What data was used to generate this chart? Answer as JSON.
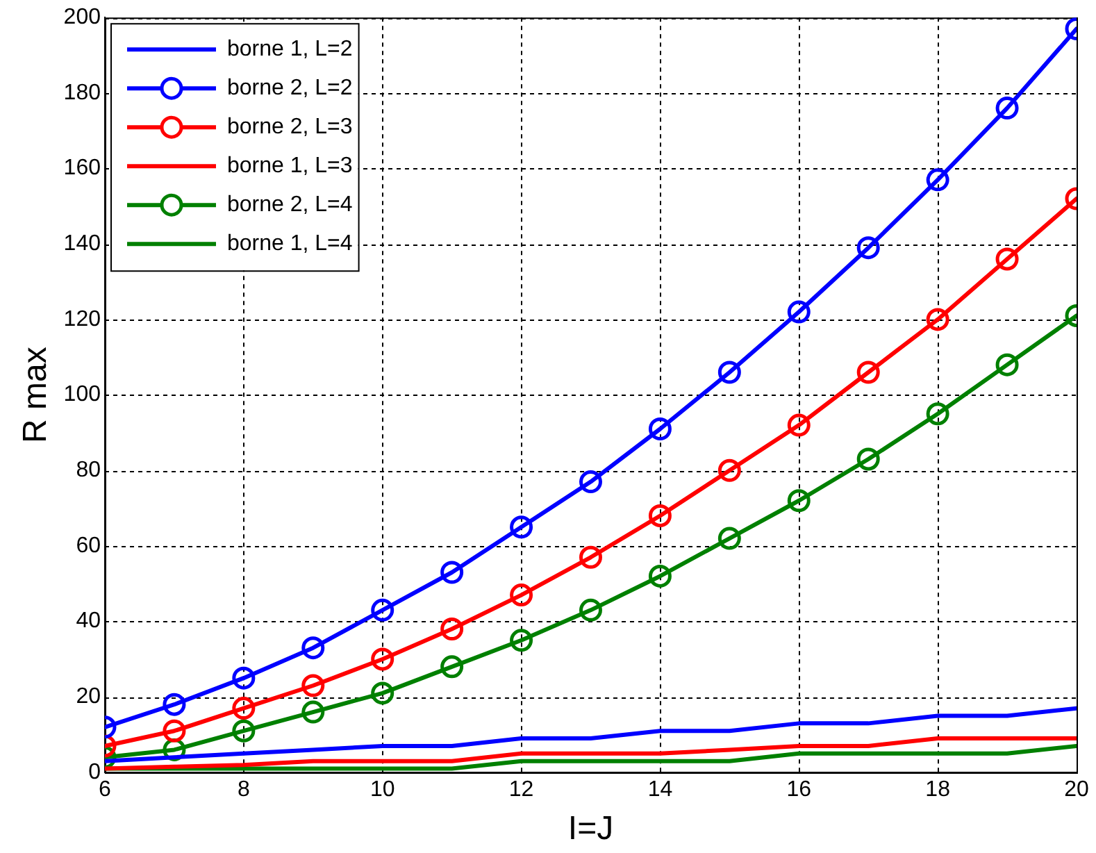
{
  "chart_data": {
    "type": "line",
    "xlabel": "I=J",
    "ylabel": "R max",
    "x": [
      6,
      7,
      8,
      9,
      10,
      11,
      12,
      13,
      14,
      15,
      16,
      17,
      18,
      19,
      20
    ],
    "xlim": [
      6,
      20
    ],
    "xticks": [
      6,
      8,
      10,
      12,
      14,
      16,
      18,
      20
    ],
    "ylim": [
      0,
      200
    ],
    "yticks": [
      0,
      20,
      40,
      60,
      80,
      100,
      120,
      140,
      160,
      180,
      200
    ],
    "grid": true,
    "legend": "top left",
    "line_style": "solid",
    "series": [
      {
        "name": "borne 1, L=2",
        "color": "#0000ff",
        "marker": "none",
        "values": [
          3,
          4,
          5,
          6,
          7,
          7,
          9,
          9,
          11,
          11,
          13,
          13,
          15,
          15,
          17
        ]
      },
      {
        "name": "borne 2, L=2",
        "color": "#0000ff",
        "marker": "circle",
        "values": [
          12,
          18,
          25,
          33,
          43,
          53,
          65,
          77,
          91,
          106,
          122,
          139,
          157,
          176,
          197
        ]
      },
      {
        "name": "borne 2, L=3",
        "color": "#ff0000",
        "marker": "circle",
        "values": [
          7,
          11,
          17,
          23,
          30,
          38,
          47,
          57,
          68,
          80,
          92,
          106,
          120,
          136,
          152
        ]
      },
      {
        "name": "borne 1, L=3",
        "color": "#ff0000",
        "marker": "none",
        "values": [
          1,
          1.5,
          2,
          3,
          3,
          3,
          5,
          5,
          5,
          6,
          7,
          7,
          9,
          9,
          9
        ]
      },
      {
        "name": "borne 2, L=4",
        "color": "#008000",
        "marker": "circle",
        "values": [
          4,
          6,
          11,
          16,
          21,
          28,
          35,
          43,
          52,
          62,
          72,
          83,
          95,
          108,
          121
        ]
      },
      {
        "name": "borne 1, L=4",
        "color": "#008000",
        "marker": "none",
        "values": [
          1,
          1,
          1,
          1,
          1,
          1,
          3,
          3,
          3,
          3,
          5,
          5,
          5,
          5,
          7
        ]
      }
    ]
  }
}
